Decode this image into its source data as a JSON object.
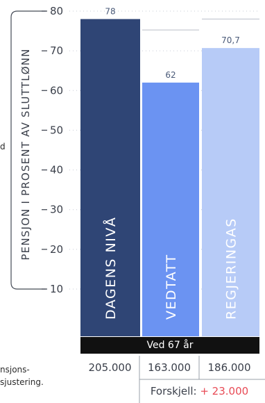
{
  "chart_data": {
    "type": "bar",
    "categories": [
      "DAGENS NIVÅ",
      "VEDTATT",
      "REGJERINGAS"
    ],
    "values": [
      78,
      62,
      70.7
    ],
    "value_labels": [
      "78",
      "62",
      "70,7"
    ],
    "colors": [
      "#2f4575",
      "#6b93f2",
      "#b7cbf7"
    ],
    "ylabel": "PENSJON I PROSENT AV SLUTTLØNN",
    "yticks": [
      10,
      20,
      30,
      40,
      50,
      60,
      70,
      80
    ],
    "ylim": [
      10,
      80
    ],
    "grid": true
  },
  "cut_left": {
    "line1": "d",
    "line2": "nsjons-",
    "line3": "sjustering."
  },
  "table": {
    "age_label": "Ved 67 år",
    "amounts": [
      "205.000",
      "163.000",
      "186.000"
    ],
    "difference_label": "Forskjell:",
    "difference_value": "+ 23.000"
  }
}
